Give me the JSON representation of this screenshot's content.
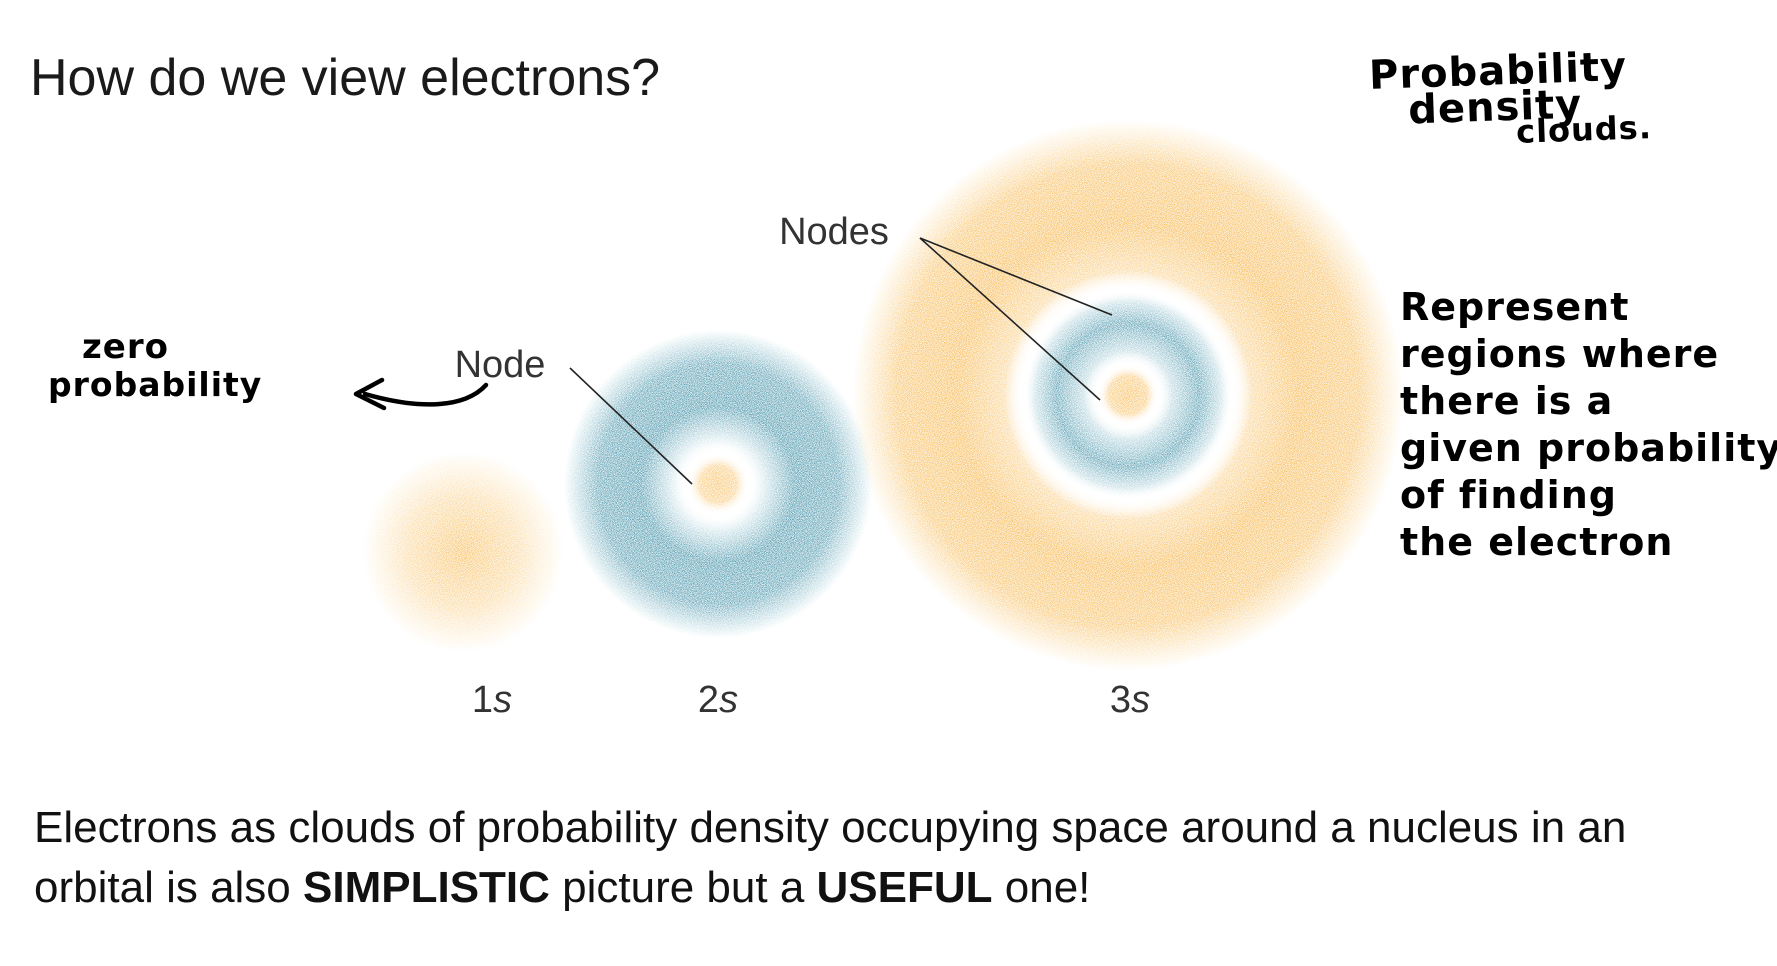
{
  "slide": {
    "title": "How do we view electrons?"
  },
  "figure": {
    "orbitals": [
      {
        "label_main": "1",
        "label_sub": "s",
        "nodes": 0
      },
      {
        "label_main": "2",
        "label_sub": "s",
        "nodes": 1
      },
      {
        "label_main": "3",
        "label_sub": "s",
        "nodes": 2
      }
    ],
    "node_label": "Node",
    "nodes_label": "Nodes",
    "colors": {
      "orange": "#f5a623",
      "teal": "#1a7a96"
    }
  },
  "annotations": {
    "top_right": [
      "Probability",
      "density",
      "clouds."
    ],
    "left": [
      "zero",
      "probability"
    ],
    "right": [
      "Represent",
      "regions where",
      "there is a",
      "given probability",
      "of finding",
      "the electron"
    ]
  },
  "caption": {
    "part1": "Electrons as clouds of probability density occupying space around a nucleus in an orbital is also ",
    "bold1": "SIMPLISTIC",
    "part2": " picture but a ",
    "bold2": "USEFUL",
    "part3": " one!"
  }
}
